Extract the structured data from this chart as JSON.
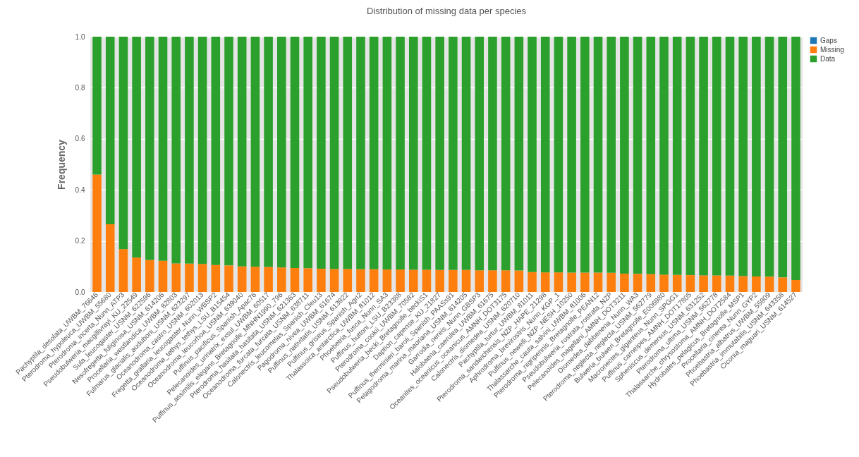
{
  "chart_data": {
    "type": "bar",
    "title": "Distribution of missing data per species",
    "ylabel": "Frequency",
    "stacked": true,
    "grid": "y",
    "legend": "right",
    "categories": [
      "Pachyptila_desolata_UWBM_76646",
      "Pterodroma_hypoleuca_UWBM_55680",
      "Pterodroma_incerta_Nunn_ATP3",
      "Pseudobulweria_macgillivrayi_KU_22549",
      "Sula_leucogaster_USNM_622596",
      "Nesofregetta_fuliginosa_USNM_614206",
      "Procellaria_westlandica_UWBM_82803",
      "Fulmarus_glacialis_auduboni_USNM_623297",
      "Oceanodroma_castro_USNM_602013",
      "Fregetta_grallaria_leucogaster_Nunn_WBSP2",
      "Oceanodroma_tethys_tethys_LSU_B15454",
      "Oceanodroma_leucorhoa_USNM_639040",
      "Puffinus_pacificus_Spanish_Apac76",
      "Pelecanoides_urinatrix_exsul_UWBM_60517",
      "Puffinus_assimilis_elegans_Bretagnolle_MNHN1990_796",
      "Pterodroma_hasitata_hasitata_USNM_621363",
      "Oceanodroma_furcata_furcata_USNM_638711",
      "Calonectris_leucomelas_Spanish_Cleu13",
      "Pagodroma_nivea_UWBM_61674",
      "Puffinus_nativitatis_USNM_613922",
      "Puffinus_griseus_Spanish_Agri2",
      "Thalassoica_antarctica_UWBM_81012",
      "Phoebetria_fusca_Nunn_SA3",
      "Puffinus_huttoni_LSU_B23388",
      "Pterodroma_cookii_UWBM_70582",
      "Pseudobulweria_becki_Bretagnolle_beckiS1",
      "Daption_capense_KU_21827",
      "Puffinus_lherminieri_baroli_Spanish_PAASs91",
      "Pelagodroma_marina_maoriana_USNM_614205",
      "Garrodia_nereis_Nunn_GBSP3",
      "Halobaena_caerulea_UWBM_61675",
      "Oceanites_oceanicus_oceanicus_AMNH_DOT3175",
      "Calonectris_diomedea_USNM_620710",
      "Pachyptila_turtur_UWBM_81011",
      "Pterodroma_sandwichensis_NZP_HAPE_21298",
      "Aphrodroma_brevirostris_Nunn_KGP_1",
      "Puffinus_newelli_NZP_NESH_10250",
      "Thalassarche_cauta_salvini_UWBM_81006",
      "Pterodroma_nigripennis_Bretagnolle_PEAN12",
      "Pseudobulweria_rostrata_rostrata_NZP",
      "Pelecanoides_magellani_AMNH_DOT3211",
      "Diomedea_dabbenena_Nunn_WA3",
      "Pterodroma_neglecta_neglecta_USNM_562779",
      "Bulweria_bulweri_Bretagnolle_E006980",
      "Macronectes_giganteus_Nunn_SPGG1",
      "Puffinus_carneipes_AMNH_DOT17805",
      "Spheniscus_demersus_USNM_631252",
      "Pterodroma_ultima_USNM_562778",
      "Thalassarche_chrysostoma_AMNH_DOT2584",
      "Hydrobates_pelagicus_Bretagnolle_MSP1",
      "Procellaria_cinerea_Nunn_GYP2",
      "Phoebastria_albatrus_UWBM_55909",
      "Phoebastria_immutabilis_USNM_643358",
      "Ciconia_maguari_USNM_614527"
    ],
    "series": [
      {
        "name": "Gaps",
        "color": "#1f77b4",
        "values": [
          0,
          0,
          0,
          0,
          0,
          0,
          0,
          0,
          0,
          0,
          0,
          0,
          0,
          0,
          0,
          0,
          0,
          0,
          0,
          0,
          0,
          0,
          0,
          0,
          0,
          0,
          0,
          0,
          0,
          0,
          0,
          0,
          0,
          0,
          0,
          0,
          0,
          0,
          0,
          0,
          0,
          0,
          0,
          0,
          0,
          0,
          0,
          0,
          0,
          0,
          0,
          0,
          0,
          0
        ]
      },
      {
        "name": "Missing",
        "color": "#ff7f0e",
        "values": [
          0.46,
          0.265,
          0.168,
          0.135,
          0.125,
          0.122,
          0.112,
          0.111,
          0.11,
          0.106,
          0.104,
          0.1,
          0.099,
          0.098,
          0.096,
          0.094,
          0.093,
          0.091,
          0.09,
          0.09,
          0.089,
          0.089,
          0.088,
          0.088,
          0.087,
          0.087,
          0.086,
          0.086,
          0.086,
          0.085,
          0.085,
          0.085,
          0.084,
          0.078,
          0.077,
          0.077,
          0.076,
          0.076,
          0.076,
          0.075,
          0.072,
          0.071,
          0.07,
          0.068,
          0.067,
          0.066,
          0.065,
          0.065,
          0.064,
          0.062,
          0.061,
          0.06,
          0.057,
          0.047
        ]
      },
      {
        "name": "Data",
        "color": "#2ca02c",
        "values": [
          0.54,
          0.735,
          0.832,
          0.865,
          0.875,
          0.878,
          0.888,
          0.889,
          0.89,
          0.894,
          0.896,
          0.9,
          0.901,
          0.902,
          0.904,
          0.906,
          0.907,
          0.909,
          0.91,
          0.91,
          0.911,
          0.911,
          0.912,
          0.912,
          0.913,
          0.913,
          0.914,
          0.914,
          0.914,
          0.915,
          0.915,
          0.915,
          0.916,
          0.922,
          0.923,
          0.923,
          0.924,
          0.924,
          0.924,
          0.925,
          0.928,
          0.929,
          0.93,
          0.932,
          0.933,
          0.934,
          0.935,
          0.935,
          0.936,
          0.938,
          0.939,
          0.94,
          0.943,
          0.953
        ]
      }
    ],
    "ylim": [
      0,
      1.0
    ],
    "yticks": [
      {
        "value": 0,
        "label": "0.0"
      },
      0.2,
      0.4,
      0.6,
      0.8,
      {
        "value": 1,
        "label": "1.0"
      }
    ]
  }
}
